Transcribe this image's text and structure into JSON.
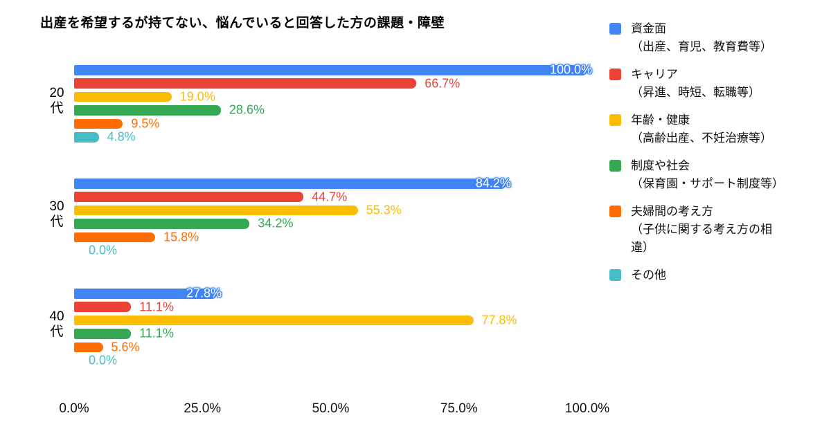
{
  "chart_data": {
    "type": "bar",
    "orientation": "horizontal",
    "title": "出産を希望するが持てない、悩んでいると回答した方の課題・障壁",
    "grid": false,
    "legend_position": "right",
    "background_color": "#ffffff",
    "x_axis": {
      "min": 0,
      "max": 100,
      "tick_values": [
        0,
        25,
        50,
        75,
        100
      ],
      "tick_labels": [
        "0.0%",
        "25.0%",
        "50.0%",
        "75.0%",
        "100.0%"
      ]
    },
    "categories": [
      "20代",
      "30代",
      "40代"
    ],
    "category_label_lines": [
      "20\n代",
      "30\n代",
      "40\n代"
    ],
    "series": [
      {
        "name": "資金面",
        "sub": "（出産、育児、教育費等）",
        "color": "#4285F4",
        "annotation": "inside-white",
        "values": [
          100.0,
          84.2,
          27.8
        ],
        "labels": [
          "100.0%",
          "84.2%",
          "27.8%"
        ]
      },
      {
        "name": "キャリア",
        "sub": "（昇進、時短、転職等）",
        "color": "#EA4335",
        "annotation": "outside",
        "values": [
          66.7,
          44.7,
          11.1
        ],
        "labels": [
          "66.7%",
          "44.7%",
          "11.1%"
        ]
      },
      {
        "name": "年齢・健康",
        "sub": "（高齢出産、不妊治療等）",
        "color": "#FBBC04",
        "annotation": "outside",
        "values": [
          19.0,
          55.3,
          77.8
        ],
        "labels": [
          "19.0%",
          "55.3%",
          "77.8%"
        ]
      },
      {
        "name": "制度や社会",
        "sub": "（保育園・サポート制度等）",
        "color": "#34A853",
        "annotation": "outside",
        "values": [
          28.6,
          34.2,
          11.1
        ],
        "labels": [
          "28.6%",
          "34.2%",
          "11.1%"
        ]
      },
      {
        "name": "夫婦間の考え方",
        "sub": "（子供に関する考え方の相\n違）",
        "color": "#FF6D01",
        "annotation": "outside",
        "values": [
          9.5,
          15.8,
          5.6
        ],
        "labels": [
          "9.5%",
          "15.8%",
          "5.6%"
        ]
      },
      {
        "name": "その他",
        "sub": "",
        "color": "#46BDC6",
        "annotation": "outside",
        "values": [
          4.8,
          0.0,
          0.0
        ],
        "labels": [
          "4.8%",
          "0.0%",
          "0.0%"
        ]
      }
    ]
  }
}
